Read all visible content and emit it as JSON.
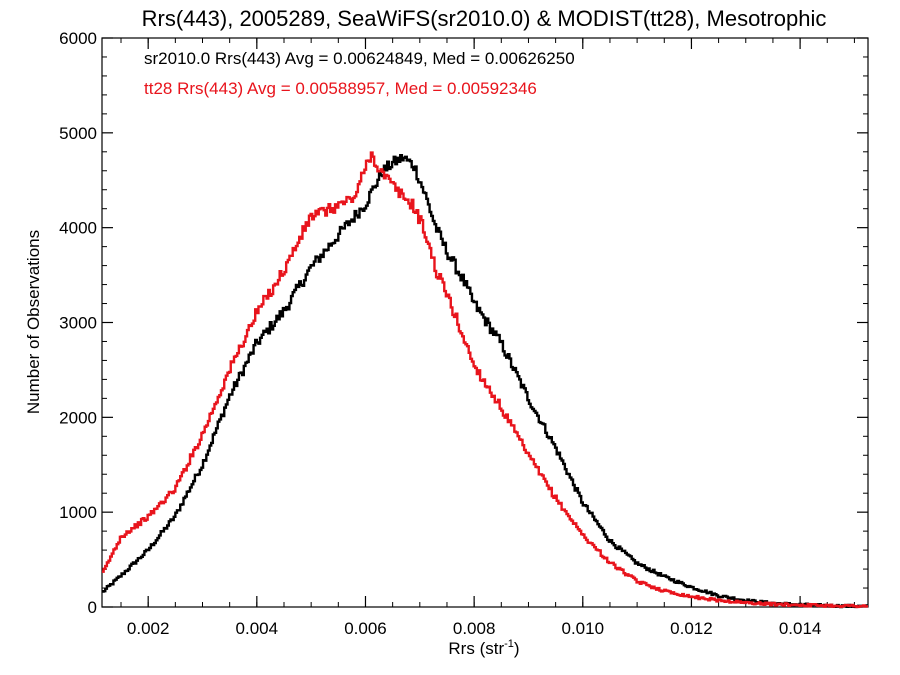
{
  "chart_data": {
    "type": "line",
    "title": "Rrs(443), 2005289, SeaWiFS(sr2010.0) & MODIST(tt28), Mesotrophic",
    "xlabel_main": "Rrs (str",
    "xlabel_sup": "-1",
    "xlabel_close": ")",
    "ylabel": "Number of Observations",
    "xlim": [
      0.00115,
      0.01525
    ],
    "ylim": [
      0,
      6000
    ],
    "xticks": [
      0.002,
      0.004,
      0.006,
      0.008,
      0.01,
      0.012,
      0.014
    ],
    "xtick_labels": [
      "0.002",
      "0.004",
      "0.006",
      "0.008",
      "0.010",
      "0.012",
      "0.014"
    ],
    "yticks": [
      0,
      1000,
      2000,
      3000,
      4000,
      5000,
      6000
    ],
    "ytick_labels": [
      "0",
      "1000",
      "2000",
      "3000",
      "4000",
      "5000",
      "6000"
    ],
    "grid": false,
    "annotations": [
      {
        "text": "sr2010.0 Rrs(443) Avg = 0.00624849, Med = 0.00626250",
        "color": "#000000"
      },
      {
        "text": "tt28 Rrs(443) Avg = 0.00588957, Med = 0.00592346",
        "color": "#e8141c"
      }
    ],
    "series": [
      {
        "name": "sr2010.0",
        "color": "#000000",
        "style": "step",
        "x": [
          0.00115,
          0.0015,
          0.002,
          0.0025,
          0.003,
          0.0035,
          0.004,
          0.0045,
          0.005,
          0.0055,
          0.006,
          0.0063,
          0.0065,
          0.0067,
          0.0069,
          0.0071,
          0.0073,
          0.0075,
          0.0078,
          0.008,
          0.0085,
          0.009,
          0.0095,
          0.01,
          0.0105,
          0.011,
          0.0115,
          0.012,
          0.0125,
          0.013,
          0.0135,
          0.014,
          0.0145,
          0.015,
          0.01525
        ],
        "y": [
          150,
          330,
          600,
          960,
          1500,
          2220,
          2780,
          3120,
          3580,
          3920,
          4250,
          4580,
          4680,
          4740,
          4650,
          4350,
          4000,
          3750,
          3450,
          3200,
          2780,
          2200,
          1680,
          1100,
          700,
          460,
          320,
          210,
          120,
          70,
          40,
          25,
          15,
          8,
          5
        ]
      },
      {
        "name": "tt28",
        "color": "#e8141c",
        "style": "step",
        "x": [
          0.00115,
          0.0015,
          0.002,
          0.0025,
          0.003,
          0.0035,
          0.004,
          0.0045,
          0.005,
          0.0053,
          0.0058,
          0.0061,
          0.0063,
          0.0066,
          0.0069,
          0.0071,
          0.0073,
          0.0075,
          0.0078,
          0.008,
          0.0085,
          0.009,
          0.0095,
          0.01,
          0.0105,
          0.011,
          0.0115,
          0.012,
          0.0125,
          0.013,
          0.0135,
          0.014,
          0.0145,
          0.015,
          0.01525
        ],
        "y": [
          340,
          740,
          950,
          1250,
          1820,
          2500,
          3100,
          3550,
          4120,
          4180,
          4320,
          4780,
          4580,
          4380,
          4220,
          3950,
          3550,
          3300,
          2850,
          2550,
          2100,
          1600,
          1150,
          760,
          470,
          270,
          170,
          110,
          70,
          45,
          30,
          22,
          15,
          12,
          10
        ]
      }
    ]
  }
}
